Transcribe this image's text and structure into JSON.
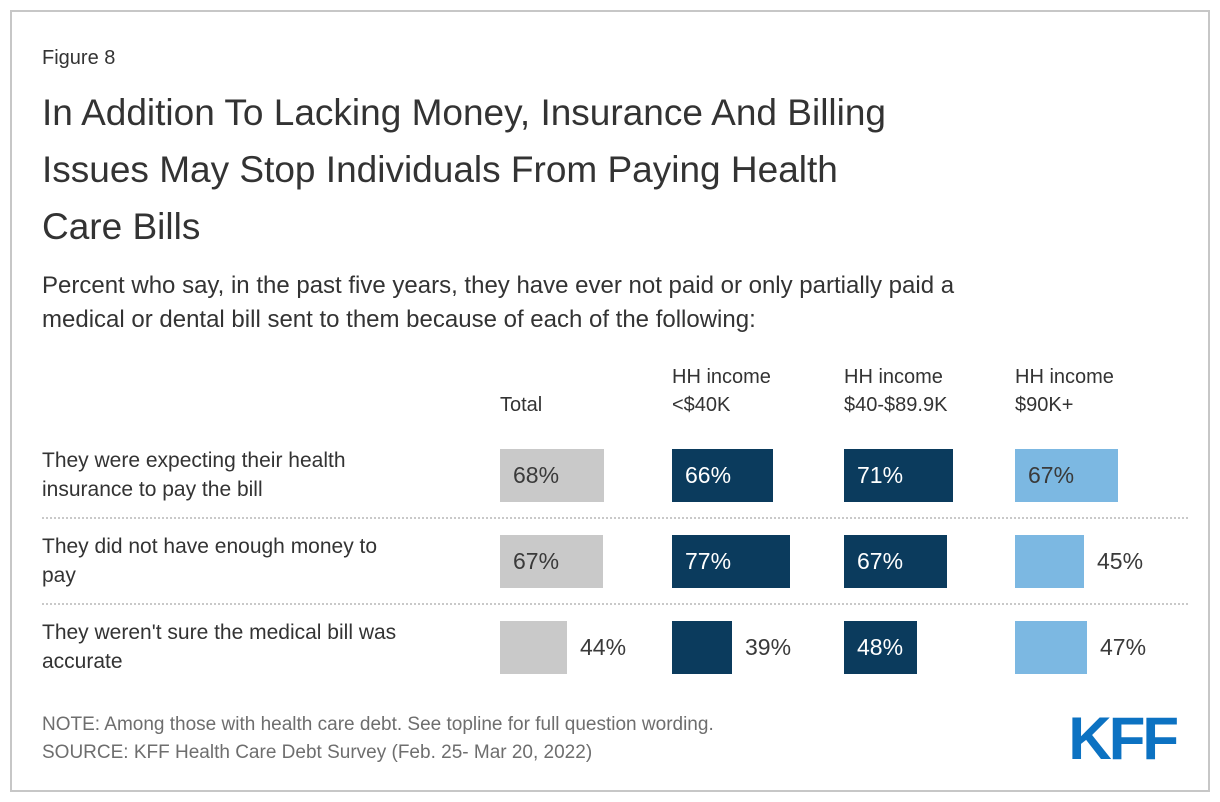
{
  "figure_label": "Figure 8",
  "title": "In Addition To Lacking Money, Insurance And Billing\nIssues May Stop Individuals From Paying Health\nCare Bills",
  "subtitle": "Percent who say, in the past five years, they have ever not paid or only partially paid a\nmedical or dental bill sent to them because of each of the following:",
  "note": "NOTE: Among those with health care debt. See topline for full question wording.",
  "source": "SOURCE: KFF Health Care Debt Survey (Feb. 25- Mar 20, 2022)",
  "logo_text": "KFF",
  "colors": {
    "total_bar": "#c9c9c9",
    "navy_bar": "#0b3b5d",
    "light_blue_bar": "#7cb8e2",
    "kff_blue": "#0c72c2",
    "text_dark": "#3a3a3a",
    "text_light": "#ffffff"
  },
  "chart_data": {
    "type": "bar",
    "orientation": "horizontal",
    "unit": "%",
    "value_range": [
      0,
      100
    ],
    "grid": false,
    "columns": [
      {
        "label": "Total",
        "color": "#c9c9c9"
      },
      {
        "label": "HH income\n<$40K",
        "color": "#0b3b5d"
      },
      {
        "label": "HH income\n$40-$89.9K",
        "color": "#0b3b5d"
      },
      {
        "label": "HH income\n$90K+",
        "color": "#7cb8e2"
      }
    ],
    "rows": [
      {
        "label": "They were expecting their health\ninsurance to pay the bill",
        "cells": [
          {
            "value": 68,
            "display": "68%",
            "label_inside": true,
            "bar_color": "#c9c9c9",
            "label_color": "#3a3a3a"
          },
          {
            "value": 66,
            "display": "66%",
            "label_inside": true,
            "bar_color": "#0b3b5d",
            "label_color": "#ffffff"
          },
          {
            "value": 71,
            "display": "71%",
            "label_inside": true,
            "bar_color": "#0b3b5d",
            "label_color": "#ffffff"
          },
          {
            "value": 67,
            "display": "67%",
            "label_inside": true,
            "bar_color": "#7cb8e2",
            "label_color": "#3a3a3a"
          }
        ]
      },
      {
        "label": "They did not have enough money to\npay",
        "cells": [
          {
            "value": 67,
            "display": "67%",
            "label_inside": true,
            "bar_color": "#c9c9c9",
            "label_color": "#3a3a3a"
          },
          {
            "value": 77,
            "display": "77%",
            "label_inside": true,
            "bar_color": "#0b3b5d",
            "label_color": "#ffffff"
          },
          {
            "value": 67,
            "display": "67%",
            "label_inside": true,
            "bar_color": "#0b3b5d",
            "label_color": "#ffffff"
          },
          {
            "value": 45,
            "display": "45%",
            "label_inside": false,
            "bar_color": "#7cb8e2",
            "label_color": "#3a3a3a"
          }
        ]
      },
      {
        "label": "They weren't sure the medical bill was\naccurate",
        "cells": [
          {
            "value": 44,
            "display": "44%",
            "label_inside": false,
            "bar_color": "#c9c9c9",
            "label_color": "#3a3a3a"
          },
          {
            "value": 39,
            "display": "39%",
            "label_inside": false,
            "bar_color": "#0b3b5d",
            "label_color": "#3a3a3a"
          },
          {
            "value": 48,
            "display": "48%",
            "label_inside": true,
            "bar_color": "#0b3b5d",
            "label_color": "#ffffff"
          },
          {
            "value": 47,
            "display": "47%",
            "label_inside": false,
            "bar_color": "#7cb8e2",
            "label_color": "#3a3a3a"
          }
        ]
      }
    ]
  }
}
